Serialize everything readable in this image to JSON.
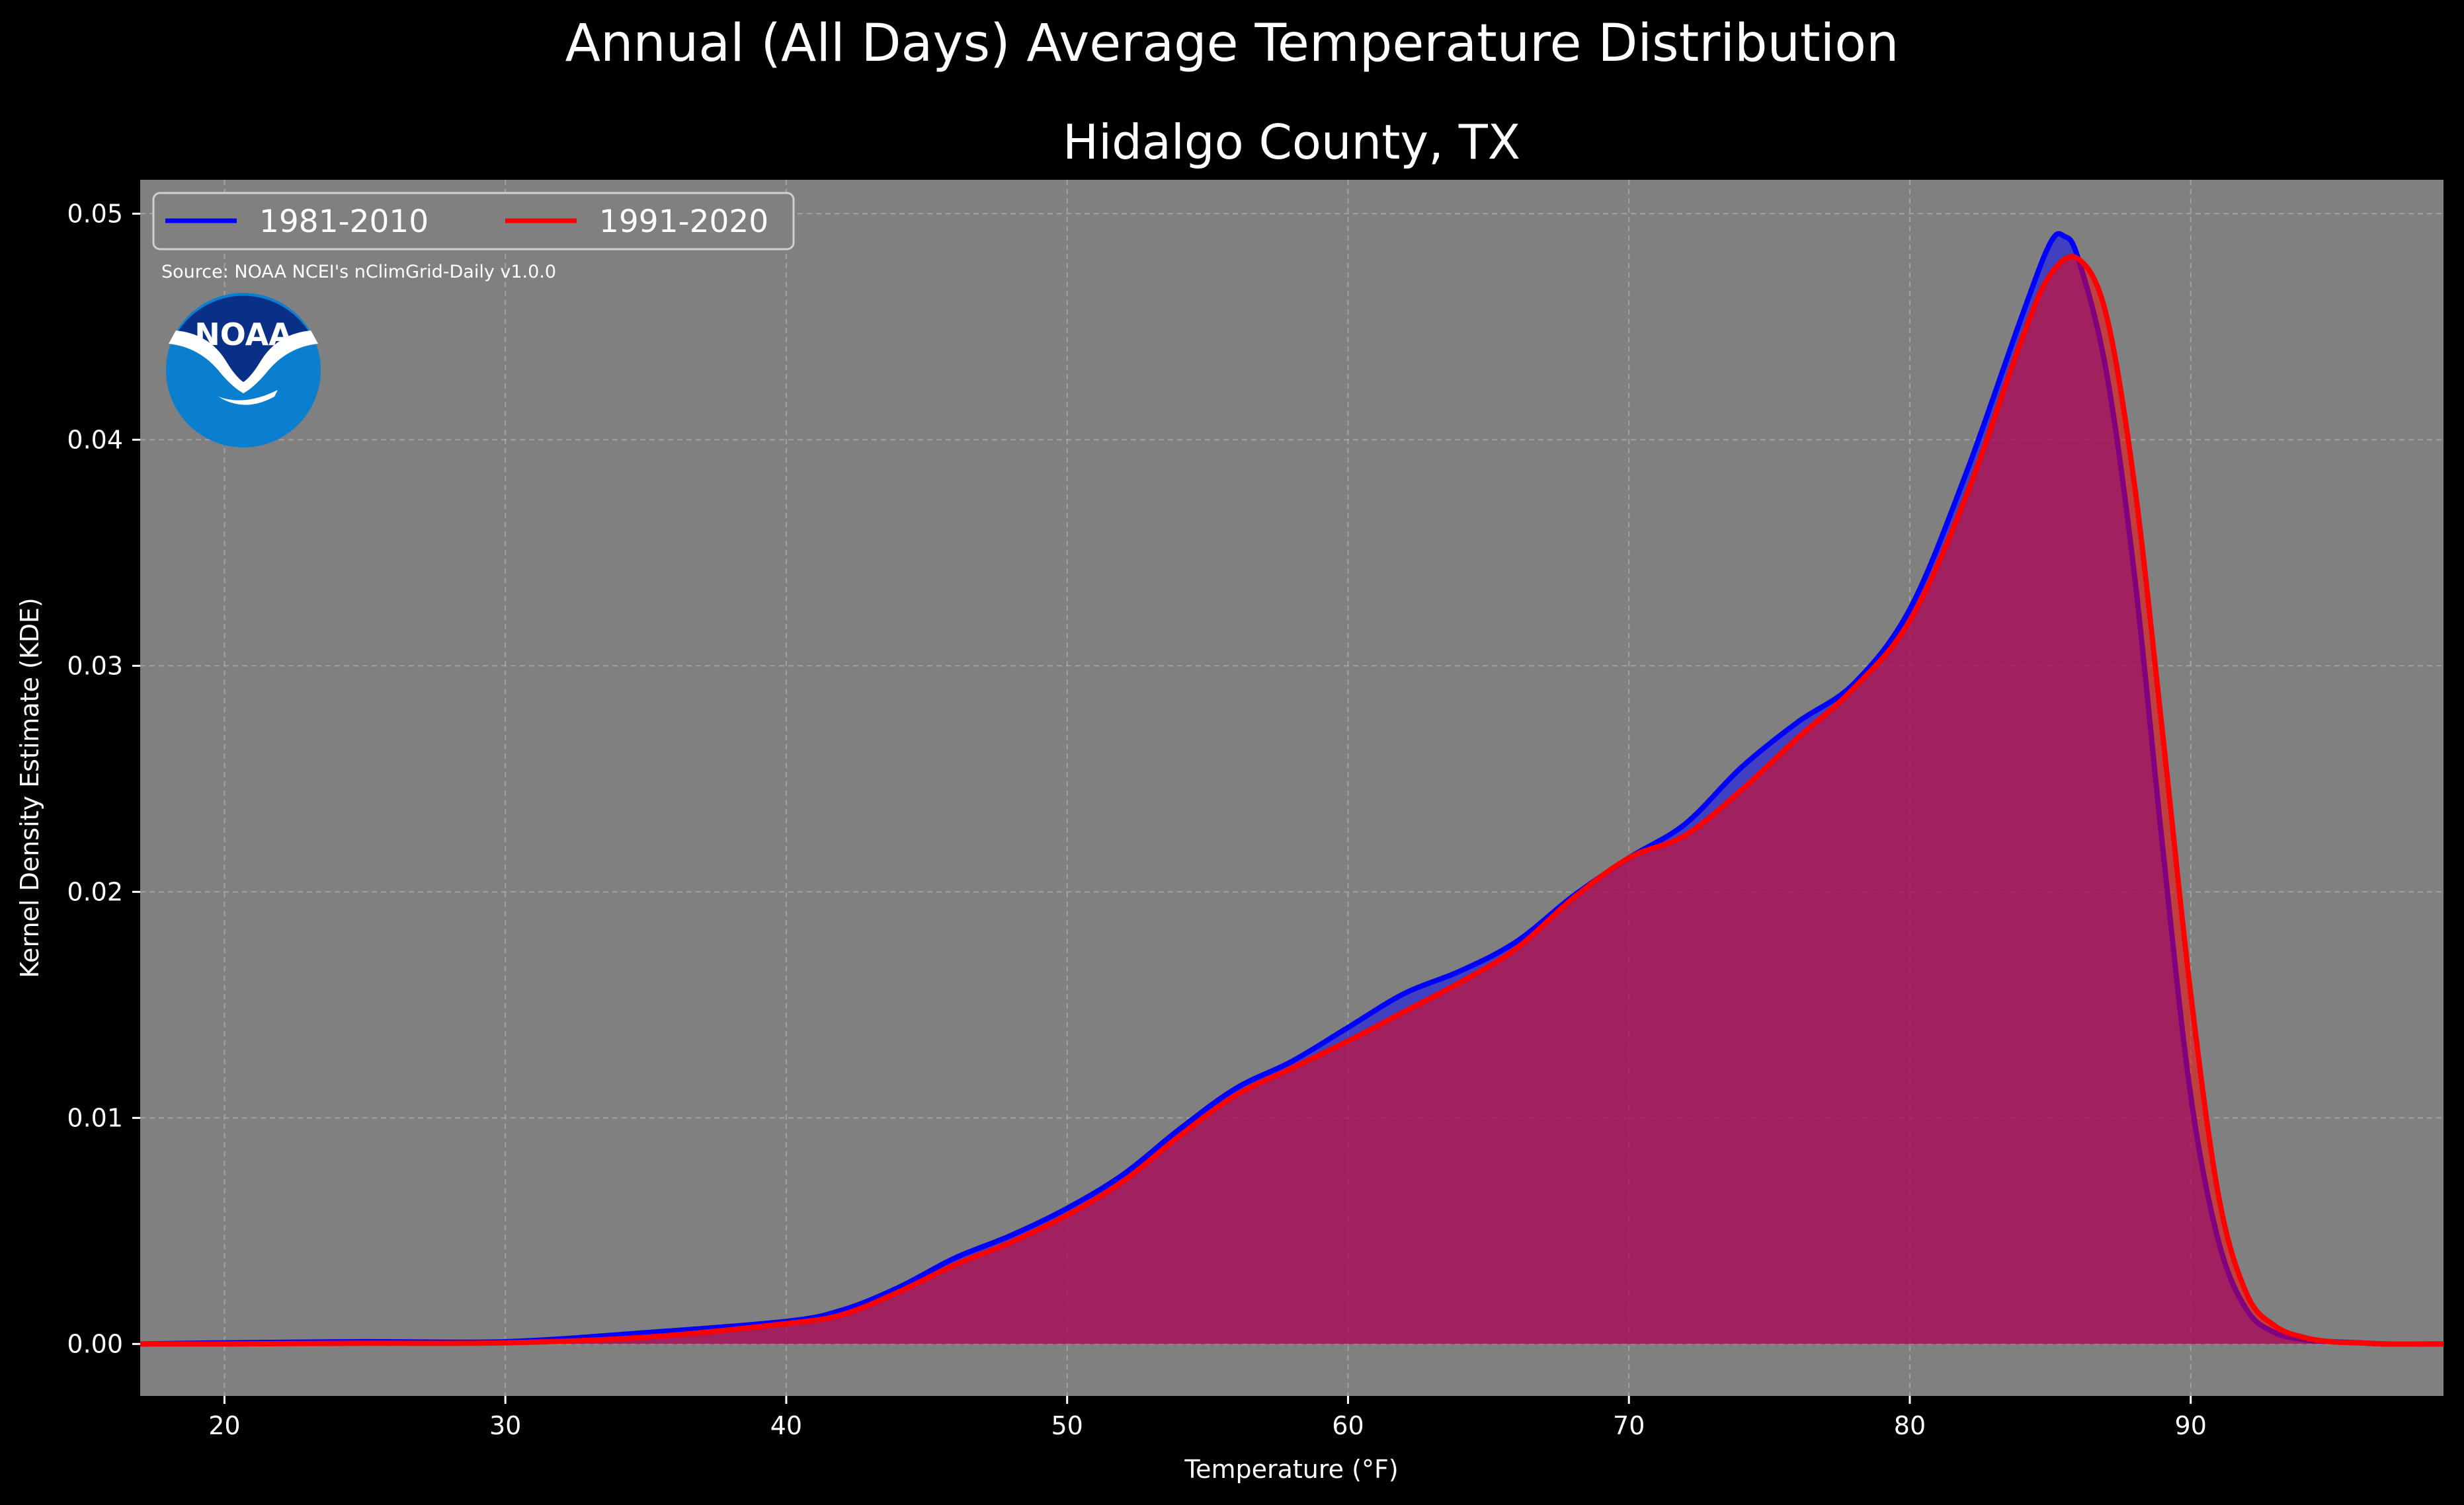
{
  "chart_data": {
    "type": "area",
    "title": "Annual (All Days) Average Temperature Distribution",
    "subtitle": "Hidalgo County, TX",
    "xlabel": "Temperature (°F)",
    "ylabel": "Kernel Density Estimate (KDE)",
    "xlim": [
      17,
      99
    ],
    "ylim": [
      -0.0023,
      0.0515
    ],
    "xticks": [
      20,
      30,
      40,
      50,
      60,
      70,
      80,
      90
    ],
    "yticks": [
      0.0,
      0.01,
      0.02,
      0.03,
      0.04,
      0.05
    ],
    "ytick_labels": [
      "0.00",
      "0.01",
      "0.02",
      "0.03",
      "0.04",
      "0.05"
    ],
    "grid": true,
    "legend_position": "upper-left",
    "source": "Source: NOAA NCEI's nClimGrid-Daily v1.0.0",
    "logo_text": "NOAA",
    "series": [
      {
        "name": "1981-2010",
        "color": "#0000ff",
        "fill": "#0000ff",
        "x": [
          17,
          20,
          25,
          30,
          35,
          40,
          42,
          44,
          46,
          48,
          50,
          52,
          54,
          56,
          58,
          60,
          62,
          64,
          66,
          68,
          70,
          72,
          74,
          76,
          78,
          80,
          82,
          84,
          85,
          85.5,
          86,
          87,
          88,
          89,
          90,
          91,
          92,
          93,
          94,
          95,
          96,
          97,
          99
        ],
        "y": [
          0.0,
          5e-05,
          0.0001,
          0.0001,
          0.0005,
          0.001,
          0.0015,
          0.0025,
          0.0038,
          0.0048,
          0.006,
          0.0075,
          0.0095,
          0.0113,
          0.0125,
          0.014,
          0.0155,
          0.0165,
          0.0178,
          0.0198,
          0.0215,
          0.023,
          0.0255,
          0.0275,
          0.0292,
          0.0325,
          0.0385,
          0.0455,
          0.0487,
          0.049,
          0.048,
          0.043,
          0.034,
          0.022,
          0.011,
          0.0045,
          0.0015,
          0.0005,
          0.0002,
          0.0001,
          5e-05,
          0.0,
          0.0
        ]
      },
      {
        "name": "1991-2020",
        "color": "#ff0000",
        "fill": "#ff0000",
        "x": [
          17,
          20,
          25,
          30,
          35,
          40,
          42,
          44,
          46,
          48,
          50,
          52,
          54,
          56,
          58,
          60,
          62,
          64,
          66,
          68,
          70,
          72,
          74,
          76,
          78,
          80,
          82,
          84,
          85,
          86,
          87,
          88,
          89,
          90,
          91,
          92,
          93,
          94,
          95,
          96,
          97,
          99
        ],
        "y": [
          0.0,
          0.0,
          3e-05,
          5e-05,
          0.0003,
          0.0009,
          0.0013,
          0.0023,
          0.0035,
          0.0045,
          0.0057,
          0.0072,
          0.0092,
          0.011,
          0.0122,
          0.0134,
          0.0147,
          0.016,
          0.0175,
          0.0197,
          0.0215,
          0.0225,
          0.0245,
          0.0268,
          0.029,
          0.032,
          0.0375,
          0.0445,
          0.0473,
          0.048,
          0.0455,
          0.038,
          0.027,
          0.0155,
          0.0065,
          0.0022,
          0.0008,
          0.0003,
          0.0001,
          5e-05,
          0.0,
          0.0
        ]
      }
    ]
  }
}
